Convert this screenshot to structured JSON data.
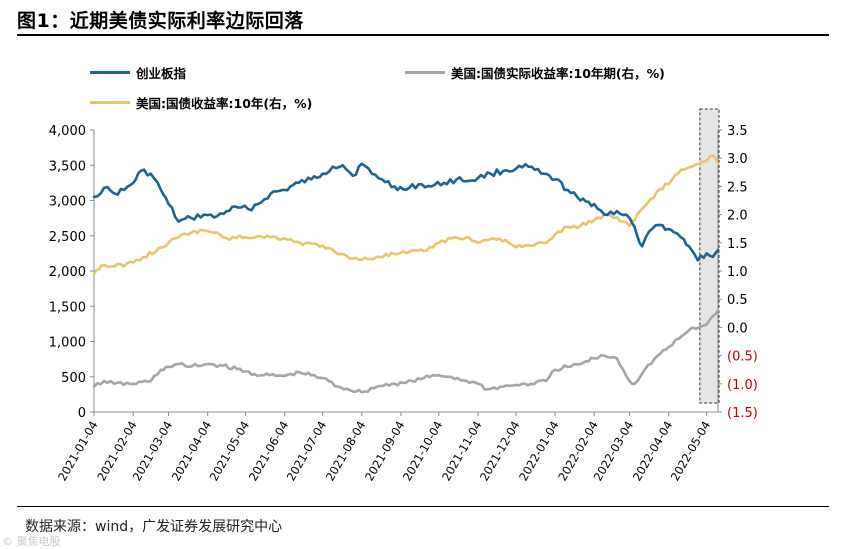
{
  "title": "图1：近期美债实际利率边际回落",
  "source_text": "数据来源：wind，广发证券发展研究中心",
  "watermark_text": "© 聚焦电股",
  "colors": {
    "blue": "#1F6391",
    "gray": "#A6A6A6",
    "gold": "#E8C66A",
    "negative": "#C00000"
  },
  "chart_data": {
    "type": "line",
    "title": "",
    "left_axis": {
      "min": 0,
      "max": 4000,
      "ticks": [
        "0",
        "500",
        "1,000",
        "1,500",
        "2,000",
        "2,500",
        "3,000",
        "3,500",
        "4,000"
      ]
    },
    "right_axis": {
      "min": -1.5,
      "max": 3.5,
      "ticks": [
        "(1.5)",
        "(1.0)",
        "(0.5)",
        "0.0",
        "0.5",
        "1.0",
        "1.5",
        "2.0",
        "2.5",
        "3.0",
        "3.5"
      ]
    },
    "x_labels": [
      "2021-01-04",
      "2021-02-04",
      "2021-03-04",
      "2021-04-04",
      "2021-05-04",
      "2021-06-04",
      "2021-07-04",
      "2021-08-04",
      "2021-09-04",
      "2021-10-04",
      "2021-11-04",
      "2021-12-04",
      "2022-01-04",
      "2022-02-04",
      "2022-03-04",
      "2022-04-04",
      "2022-05-04"
    ],
    "highlight_band": {
      "from": "2022-05-01",
      "to": "2022-05-13"
    },
    "series": [
      {
        "name": "创业板指",
        "axis": "left",
        "color": "#1F6391",
        "points": [
          [
            "2021-01-04",
            3050
          ],
          [
            "2021-01-12",
            3180
          ],
          [
            "2021-01-20",
            3100
          ],
          [
            "2021-01-28",
            3150
          ],
          [
            "2021-02-04",
            3250
          ],
          [
            "2021-02-10",
            3420
          ],
          [
            "2021-02-18",
            3380
          ],
          [
            "2021-02-26",
            3150
          ],
          [
            "2021-03-04",
            2950
          ],
          [
            "2021-03-12",
            2700
          ],
          [
            "2021-03-22",
            2750
          ],
          [
            "2021-04-01",
            2800
          ],
          [
            "2021-04-09",
            2760
          ],
          [
            "2021-04-19",
            2850
          ],
          [
            "2021-04-28",
            2900
          ],
          [
            "2021-05-06",
            2880
          ],
          [
            "2021-05-14",
            2950
          ],
          [
            "2021-05-24",
            3100
          ],
          [
            "2021-06-04",
            3150
          ],
          [
            "2021-06-15",
            3250
          ],
          [
            "2021-06-25",
            3300
          ],
          [
            "2021-07-04",
            3380
          ],
          [
            "2021-07-12",
            3480
          ],
          [
            "2021-07-20",
            3500
          ],
          [
            "2021-07-28",
            3350
          ],
          [
            "2021-08-04",
            3520
          ],
          [
            "2021-08-12",
            3380
          ],
          [
            "2021-08-20",
            3300
          ],
          [
            "2021-08-30",
            3200
          ],
          [
            "2021-09-08",
            3150
          ],
          [
            "2021-09-18",
            3230
          ],
          [
            "2021-09-28",
            3200
          ],
          [
            "2021-10-08",
            3250
          ],
          [
            "2021-10-18",
            3300
          ],
          [
            "2021-10-28",
            3280
          ],
          [
            "2021-11-04",
            3320
          ],
          [
            "2021-11-14",
            3380
          ],
          [
            "2021-11-24",
            3420
          ],
          [
            "2021-12-04",
            3450
          ],
          [
            "2021-12-14",
            3480
          ],
          [
            "2021-12-24",
            3380
          ],
          [
            "2022-01-04",
            3300
          ],
          [
            "2022-01-14",
            3150
          ],
          [
            "2022-01-24",
            3000
          ],
          [
            "2022-02-04",
            2950
          ],
          [
            "2022-02-12",
            2800
          ],
          [
            "2022-02-22",
            2850
          ],
          [
            "2022-03-04",
            2750
          ],
          [
            "2022-03-10",
            2500
          ],
          [
            "2022-03-14",
            2350
          ],
          [
            "2022-03-22",
            2600
          ],
          [
            "2022-03-30",
            2650
          ],
          [
            "2022-04-08",
            2550
          ],
          [
            "2022-04-16",
            2450
          ],
          [
            "2022-04-22",
            2300
          ],
          [
            "2022-04-27",
            2150
          ],
          [
            "2022-05-04",
            2250
          ],
          [
            "2022-05-09",
            2200
          ],
          [
            "2022-05-13",
            2300
          ]
        ]
      },
      {
        "name": "美国:国债实际收益率:10年期(右，%)",
        "axis": "right",
        "color": "#A6A6A6",
        "points": [
          [
            "2021-01-04",
            -1.05
          ],
          [
            "2021-01-12",
            -0.95
          ],
          [
            "2021-01-20",
            -1.0
          ],
          [
            "2021-02-04",
            -1.0
          ],
          [
            "2021-02-18",
            -0.95
          ],
          [
            "2021-02-26",
            -0.75
          ],
          [
            "2021-03-04",
            -0.7
          ],
          [
            "2021-03-12",
            -0.65
          ],
          [
            "2021-03-20",
            -0.7
          ],
          [
            "2021-04-04",
            -0.65
          ],
          [
            "2021-04-16",
            -0.68
          ],
          [
            "2021-05-04",
            -0.78
          ],
          [
            "2021-05-16",
            -0.85
          ],
          [
            "2021-06-04",
            -0.86
          ],
          [
            "2021-06-16",
            -0.8
          ],
          [
            "2021-07-04",
            -0.9
          ],
          [
            "2021-07-16",
            -1.05
          ],
          [
            "2021-08-04",
            -1.15
          ],
          [
            "2021-08-16",
            -1.05
          ],
          [
            "2021-08-28",
            -1.0
          ],
          [
            "2021-09-08",
            -0.98
          ],
          [
            "2021-09-22",
            -0.9
          ],
          [
            "2021-10-04",
            -0.85
          ],
          [
            "2021-10-14",
            -0.88
          ],
          [
            "2021-10-26",
            -0.95
          ],
          [
            "2021-11-04",
            -1.0
          ],
          [
            "2021-11-12",
            -1.1
          ],
          [
            "2021-11-24",
            -1.05
          ],
          [
            "2021-12-04",
            -1.02
          ],
          [
            "2021-12-16",
            -1.0
          ],
          [
            "2021-12-28",
            -0.95
          ],
          [
            "2022-01-04",
            -0.75
          ],
          [
            "2022-01-14",
            -0.7
          ],
          [
            "2022-01-24",
            -0.65
          ],
          [
            "2022-02-04",
            -0.55
          ],
          [
            "2022-02-12",
            -0.5
          ],
          [
            "2022-02-22",
            -0.55
          ],
          [
            "2022-03-04",
            -0.95
          ],
          [
            "2022-03-08",
            -1.0
          ],
          [
            "2022-03-16",
            -0.75
          ],
          [
            "2022-03-24",
            -0.55
          ],
          [
            "2022-04-04",
            -0.35
          ],
          [
            "2022-04-12",
            -0.2
          ],
          [
            "2022-04-20",
            -0.05
          ],
          [
            "2022-04-28",
            0.0
          ],
          [
            "2022-05-04",
            0.05
          ],
          [
            "2022-05-09",
            0.2
          ],
          [
            "2022-05-13",
            0.3
          ]
        ]
      },
      {
        "name": "美国:国债收益率:10年(右，%)",
        "axis": "right",
        "color": "#E8C66A",
        "points": [
          [
            "2021-01-04",
            0.95
          ],
          [
            "2021-01-10",
            1.1
          ],
          [
            "2021-01-20",
            1.08
          ],
          [
            "2021-02-04",
            1.15
          ],
          [
            "2021-02-12",
            1.25
          ],
          [
            "2021-02-22",
            1.35
          ],
          [
            "2021-03-04",
            1.5
          ],
          [
            "2021-03-12",
            1.6
          ],
          [
            "2021-03-22",
            1.68
          ],
          [
            "2021-04-01",
            1.72
          ],
          [
            "2021-04-09",
            1.68
          ],
          [
            "2021-04-19",
            1.58
          ],
          [
            "2021-05-04",
            1.6
          ],
          [
            "2021-05-14",
            1.62
          ],
          [
            "2021-06-04",
            1.58
          ],
          [
            "2021-06-16",
            1.5
          ],
          [
            "2021-07-04",
            1.45
          ],
          [
            "2021-07-16",
            1.3
          ],
          [
            "2021-08-04",
            1.2
          ],
          [
            "2021-08-16",
            1.25
          ],
          [
            "2021-08-30",
            1.3
          ],
          [
            "2021-09-08",
            1.32
          ],
          [
            "2021-09-22",
            1.35
          ],
          [
            "2021-10-04",
            1.5
          ],
          [
            "2021-10-14",
            1.58
          ],
          [
            "2021-10-26",
            1.6
          ],
          [
            "2021-11-04",
            1.5
          ],
          [
            "2021-11-16",
            1.58
          ],
          [
            "2021-11-26",
            1.55
          ],
          [
            "2021-12-04",
            1.42
          ],
          [
            "2021-12-16",
            1.45
          ],
          [
            "2021-12-28",
            1.5
          ],
          [
            "2022-01-04",
            1.65
          ],
          [
            "2022-01-14",
            1.78
          ],
          [
            "2022-01-24",
            1.8
          ],
          [
            "2022-02-04",
            1.9
          ],
          [
            "2022-02-12",
            2.0
          ],
          [
            "2022-02-22",
            1.95
          ],
          [
            "2022-03-04",
            1.8
          ],
          [
            "2022-03-10",
            2.0
          ],
          [
            "2022-03-18",
            2.2
          ],
          [
            "2022-03-28",
            2.45
          ],
          [
            "2022-04-06",
            2.6
          ],
          [
            "2022-04-14",
            2.8
          ],
          [
            "2022-04-22",
            2.85
          ],
          [
            "2022-04-28",
            2.9
          ],
          [
            "2022-05-04",
            2.95
          ],
          [
            "2022-05-09",
            3.05
          ],
          [
            "2022-05-13",
            2.9
          ]
        ]
      }
    ]
  }
}
